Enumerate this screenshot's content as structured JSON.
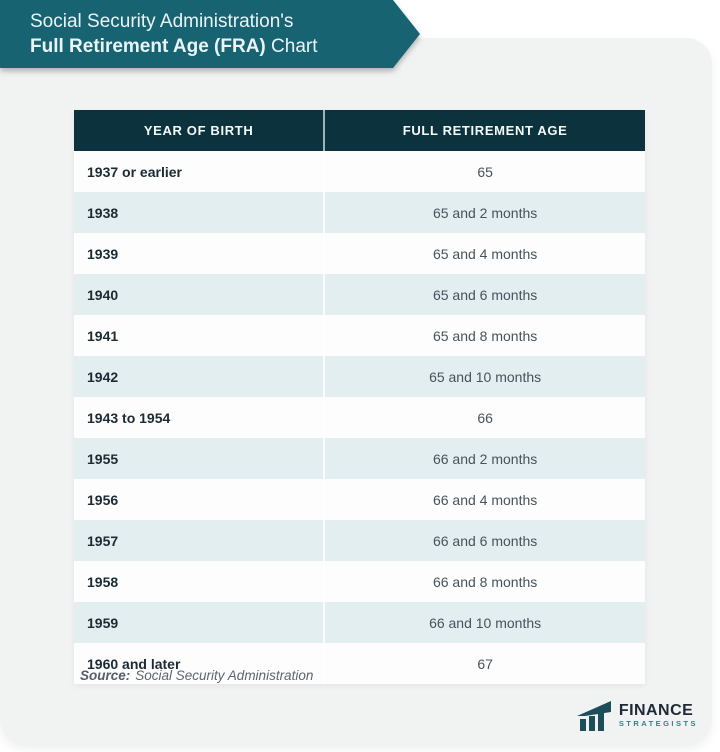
{
  "header": {
    "line1": "Social Security Administration's",
    "line2_bold": "Full Retirement Age (FRA)",
    "line2_regular": " Chart"
  },
  "table": {
    "columns": [
      "YEAR OF BIRTH",
      "FULL RETIREMENT AGE"
    ],
    "rows": [
      {
        "year": "1937 or earlier",
        "age": "65"
      },
      {
        "year": "1938",
        "age": "65 and 2 months"
      },
      {
        "year": "1939",
        "age": "65 and 4 months"
      },
      {
        "year": "1940",
        "age": "65 and 6 months"
      },
      {
        "year": "1941",
        "age": "65 and 8 months"
      },
      {
        "year": "1942",
        "age": "65 and 10 months"
      },
      {
        "year": "1943 to 1954",
        "age": "66"
      },
      {
        "year": "1955",
        "age": "66 and 2 months"
      },
      {
        "year": "1956",
        "age": "66 and 4 months"
      },
      {
        "year": "1957",
        "age": "66 and 6 months"
      },
      {
        "year": "1958",
        "age": "66 and 8 months"
      },
      {
        "year": "1959",
        "age": "66 and 10 months"
      },
      {
        "year": "1960 and later",
        "age": "67"
      }
    ]
  },
  "source": {
    "label": "Source:",
    "text": "Social Security Administration"
  },
  "logo": {
    "line1": "FINANCE",
    "line2": "STRATEGISTS"
  },
  "colors": {
    "banner_teal": "#186372",
    "table_header_dark": "#0c333d",
    "row_light": "#e3eef0",
    "row_white": "#fdfdfd",
    "card_background": "#f1f2f2",
    "year_text": "#1b2a33",
    "age_text": "#46535c",
    "logo_navy": "#1e2a36",
    "logo_teal": "#35808d"
  },
  "chart_data": {
    "type": "table",
    "title": "Social Security Administration's Full Retirement Age (FRA) Chart",
    "columns": [
      "Year of Birth",
      "Full Retirement Age"
    ],
    "rows": [
      [
        "1937 or earlier",
        "65"
      ],
      [
        "1938",
        "65 and 2 months"
      ],
      [
        "1939",
        "65 and 4 months"
      ],
      [
        "1940",
        "65 and 6 months"
      ],
      [
        "1941",
        "65 and 8 months"
      ],
      [
        "1942",
        "65 and 10 months"
      ],
      [
        "1943 to 1954",
        "66"
      ],
      [
        "1955",
        "66 and 2 months"
      ],
      [
        "1956",
        "66 and 4 months"
      ],
      [
        "1957",
        "66 and 6 months"
      ],
      [
        "1958",
        "66 and 8 months"
      ],
      [
        "1959",
        "66 and 10 months"
      ],
      [
        "1960 and later",
        "67"
      ]
    ],
    "source": "Social Security Administration"
  }
}
